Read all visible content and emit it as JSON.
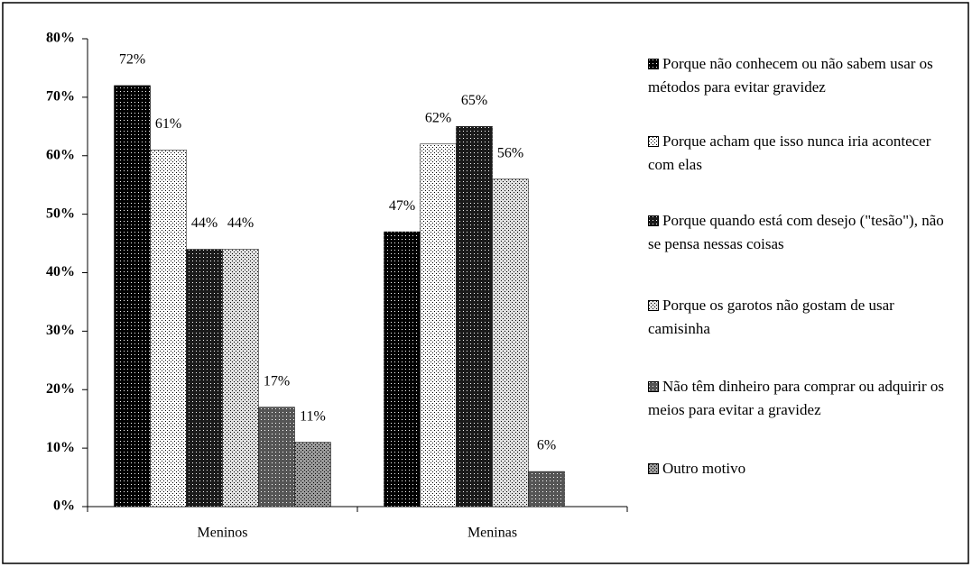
{
  "chart_data": {
    "type": "bar",
    "categories": [
      "Meninos",
      "Meninas"
    ],
    "series": [
      {
        "name": "Porque não conhecem ou não sabem usar os métodos para evitar gravidez",
        "color": "#000000",
        "values": [
          72,
          47
        ],
        "value_labels": [
          "72%",
          "47%"
        ]
      },
      {
        "name": "Porque acham que isso nunca iria acontecer com elas",
        "color": "#ffffff",
        "values": [
          61,
          62
        ],
        "value_labels": [
          "61%",
          "62%"
        ]
      },
      {
        "name": "Porque quando está com desejo (\"tesão\"), não se pensa nessas coisas",
        "color": "#1a1a1a",
        "values": [
          44,
          65
        ],
        "value_labels": [
          "44%",
          "65%"
        ]
      },
      {
        "name": "Porque os garotos não gostam de usar camisinha",
        "color": "#e0e0e0",
        "values": [
          44,
          56
        ],
        "value_labels": [
          "44%",
          "56%"
        ]
      },
      {
        "name": "Não têm dinheiro para comprar ou adquirir os meios para evitar a gravidez",
        "color": "#555555",
        "values": [
          17,
          6
        ],
        "value_labels": [
          "17%",
          "6%"
        ]
      },
      {
        "name": "Outro motivo",
        "color": "#9a9a9a",
        "values": [
          11,
          null
        ],
        "value_labels": [
          "11%",
          null
        ]
      }
    ],
    "ylim": [
      0,
      80
    ],
    "yticks": [
      {
        "value": 0,
        "label": "0%"
      },
      {
        "value": 10,
        "label": "10%"
      },
      {
        "value": 20,
        "label": "20%"
      },
      {
        "value": 30,
        "label": "30%"
      },
      {
        "value": 40,
        "label": "40%"
      },
      {
        "value": 50,
        "label": "50%"
      },
      {
        "value": 60,
        "label": "60%"
      },
      {
        "value": 70,
        "label": "70%"
      },
      {
        "value": 80,
        "label": "80%"
      }
    ],
    "grid": false,
    "legend": "right"
  }
}
